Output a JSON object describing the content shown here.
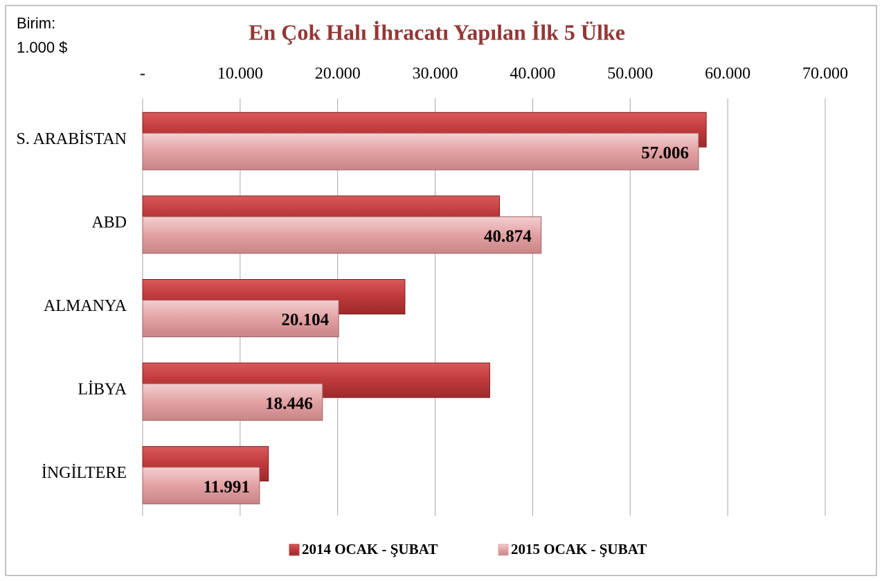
{
  "chart_data": {
    "type": "bar",
    "orientation": "horizontal",
    "title": "En Çok Halı İhracatı Yapılan İlk 5 Ülke",
    "unit_note": [
      "Birim:",
      "1.000 $"
    ],
    "categories": [
      "S. ARABİSTAN",
      "ABD",
      "ALMANYA",
      "LİBYA",
      "İNGİLTERE"
    ],
    "series": [
      {
        "name": "2014 OCAK - ŞUBAT",
        "color": "#c0393b",
        "values": [
          57800,
          36600,
          26900,
          35600,
          12900
        ]
      },
      {
        "name": "2015 OCAK - ŞUBAT",
        "color": "#e2a1a3",
        "values": [
          57006,
          40874,
          20104,
          18446,
          11991
        ],
        "value_labels": [
          "57.006",
          "40.874",
          "20.104",
          "18.446",
          "11.991"
        ]
      }
    ],
    "xlim": [
      0,
      70000
    ],
    "xticks": [
      {
        "value": 0,
        "label": "-"
      },
      {
        "value": 10000,
        "label": "10.000"
      },
      {
        "value": 20000,
        "label": "20.000"
      },
      {
        "value": 30000,
        "label": "30.000"
      },
      {
        "value": 40000,
        "label": "40.000"
      },
      {
        "value": 50000,
        "label": "50.000"
      },
      {
        "value": 60000,
        "label": "60.000"
      },
      {
        "value": 70000,
        "label": "70.000"
      }
    ],
    "grid": true,
    "legend": "bottom"
  }
}
